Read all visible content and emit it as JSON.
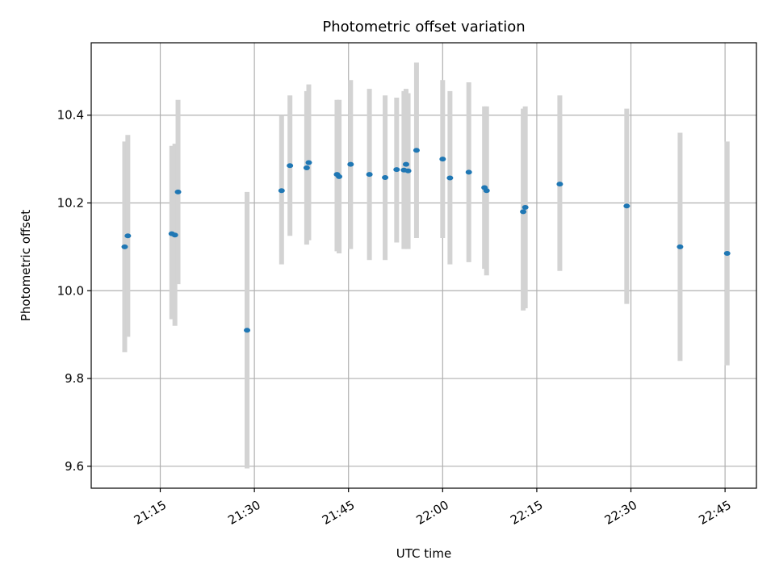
{
  "chart_data": {
    "type": "scatter",
    "title": "Photometric offset variation",
    "xlabel": "UTC time",
    "ylabel": "Photometric offset",
    "x_ticks": [
      "21:15",
      "21:30",
      "21:45",
      "22:00",
      "22:15",
      "22:30",
      "22:45"
    ],
    "y_ticks": [
      "9.6",
      "9.8",
      "10.0",
      "10.2",
      "10.4"
    ],
    "xlim": [
      "21:04",
      "22:50"
    ],
    "ylim": [
      9.55,
      10.565
    ],
    "grid": true,
    "colors": {
      "point": "#1f77b4",
      "errorbar": "#d3d3d3",
      "grid": "#b0b0b0"
    },
    "series": [
      {
        "points": [
          {
            "x": "21:09:20",
            "y": 10.1,
            "ylow": 9.86,
            "yhigh": 10.34
          },
          {
            "x": "21:09:50",
            "y": 10.125,
            "ylow": 9.895,
            "yhigh": 10.355
          },
          {
            "x": "21:16:50",
            "y": 10.13,
            "ylow": 9.935,
            "yhigh": 10.33
          },
          {
            "x": "21:17:20",
            "y": 10.127,
            "ylow": 9.92,
            "yhigh": 10.335
          },
          {
            "x": "21:17:50",
            "y": 10.225,
            "ylow": 10.015,
            "yhigh": 10.435
          },
          {
            "x": "21:28:50",
            "y": 9.91,
            "ylow": 9.595,
            "yhigh": 10.225
          },
          {
            "x": "21:34:20",
            "y": 10.228,
            "ylow": 10.06,
            "yhigh": 10.4
          },
          {
            "x": "21:35:40",
            "y": 10.285,
            "ylow": 10.125,
            "yhigh": 10.445
          },
          {
            "x": "21:38:20",
            "y": 10.28,
            "ylow": 10.105,
            "yhigh": 10.455
          },
          {
            "x": "21:38:40",
            "y": 10.292,
            "ylow": 10.115,
            "yhigh": 10.47
          },
          {
            "x": "21:43:10",
            "y": 10.265,
            "ylow": 10.09,
            "yhigh": 10.435
          },
          {
            "x": "21:43:30",
            "y": 10.26,
            "ylow": 10.085,
            "yhigh": 10.435
          },
          {
            "x": "21:45:20",
            "y": 10.288,
            "ylow": 10.095,
            "yhigh": 10.48
          },
          {
            "x": "21:48:20",
            "y": 10.265,
            "ylow": 10.07,
            "yhigh": 10.46
          },
          {
            "x": "21:50:50",
            "y": 10.258,
            "ylow": 10.07,
            "yhigh": 10.445
          },
          {
            "x": "21:52:40",
            "y": 10.276,
            "ylow": 10.11,
            "yhigh": 10.44
          },
          {
            "x": "21:53:50",
            "y": 10.275,
            "ylow": 10.095,
            "yhigh": 10.455
          },
          {
            "x": "21:54:10",
            "y": 10.288,
            "ylow": 10.1,
            "yhigh": 10.46
          },
          {
            "x": "21:54:30",
            "y": 10.273,
            "ylow": 10.095,
            "yhigh": 10.45
          },
          {
            "x": "21:55:50",
            "y": 10.32,
            "ylow": 10.12,
            "yhigh": 10.52
          },
          {
            "x": "22:00:00",
            "y": 10.3,
            "ylow": 10.12,
            "yhigh": 10.48
          },
          {
            "x": "22:01:10",
            "y": 10.257,
            "ylow": 10.06,
            "yhigh": 10.455
          },
          {
            "x": "22:04:10",
            "y": 10.27,
            "ylow": 10.065,
            "yhigh": 10.475
          },
          {
            "x": "22:06:40",
            "y": 10.235,
            "ylow": 10.05,
            "yhigh": 10.42
          },
          {
            "x": "22:07:00",
            "y": 10.228,
            "ylow": 10.035,
            "yhigh": 10.42
          },
          {
            "x": "22:12:50",
            "y": 10.18,
            "ylow": 9.955,
            "yhigh": 10.415
          },
          {
            "x": "22:13:10",
            "y": 10.19,
            "ylow": 9.96,
            "yhigh": 10.42
          },
          {
            "x": "22:18:40",
            "y": 10.243,
            "ylow": 10.045,
            "yhigh": 10.445
          },
          {
            "x": "22:29:20",
            "y": 10.193,
            "ylow": 9.97,
            "yhigh": 10.415
          },
          {
            "x": "22:37:50",
            "y": 10.1,
            "ylow": 9.84,
            "yhigh": 10.36
          },
          {
            "x": "22:45:20",
            "y": 10.085,
            "ylow": 9.83,
            "yhigh": 10.34
          }
        ]
      }
    ]
  }
}
